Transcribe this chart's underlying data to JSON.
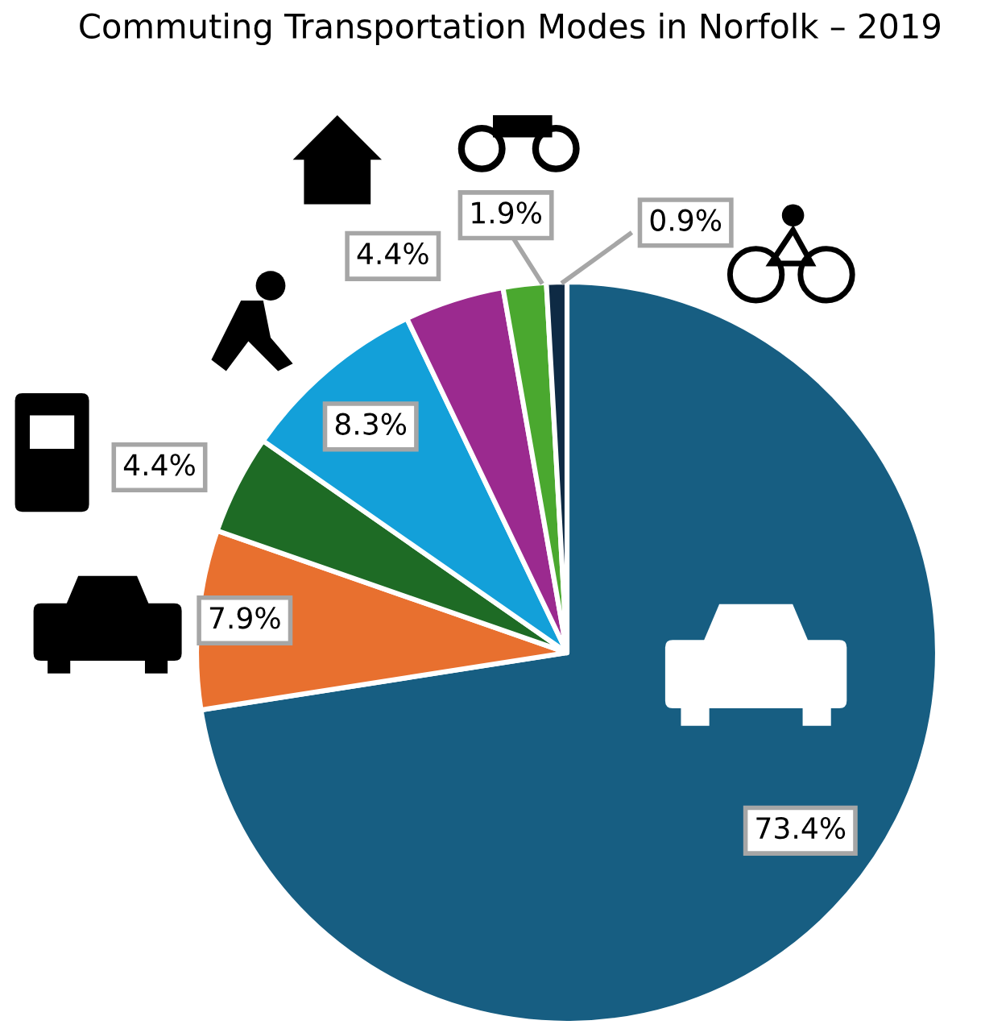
{
  "chart_data": {
    "type": "pie",
    "title": "Commuting Transportation Modes in Norfolk – 2019",
    "categories": [
      null,
      null,
      null,
      null,
      null,
      null,
      null
    ],
    "values": [
      73.4,
      7.9,
      4.4,
      8.3,
      4.4,
      1.9,
      0.9
    ],
    "colors": [
      "#175e82",
      "#e8702f",
      "#1e6b25",
      "#13a0d9",
      "#9b2a8f",
      "#4aa82f",
      "#0e2a44"
    ],
    "value_labels": [
      "73.4%",
      "7.9%",
      "4.4%",
      "8.3%",
      "4.4%",
      "1.9%",
      "0.9%"
    ]
  }
}
